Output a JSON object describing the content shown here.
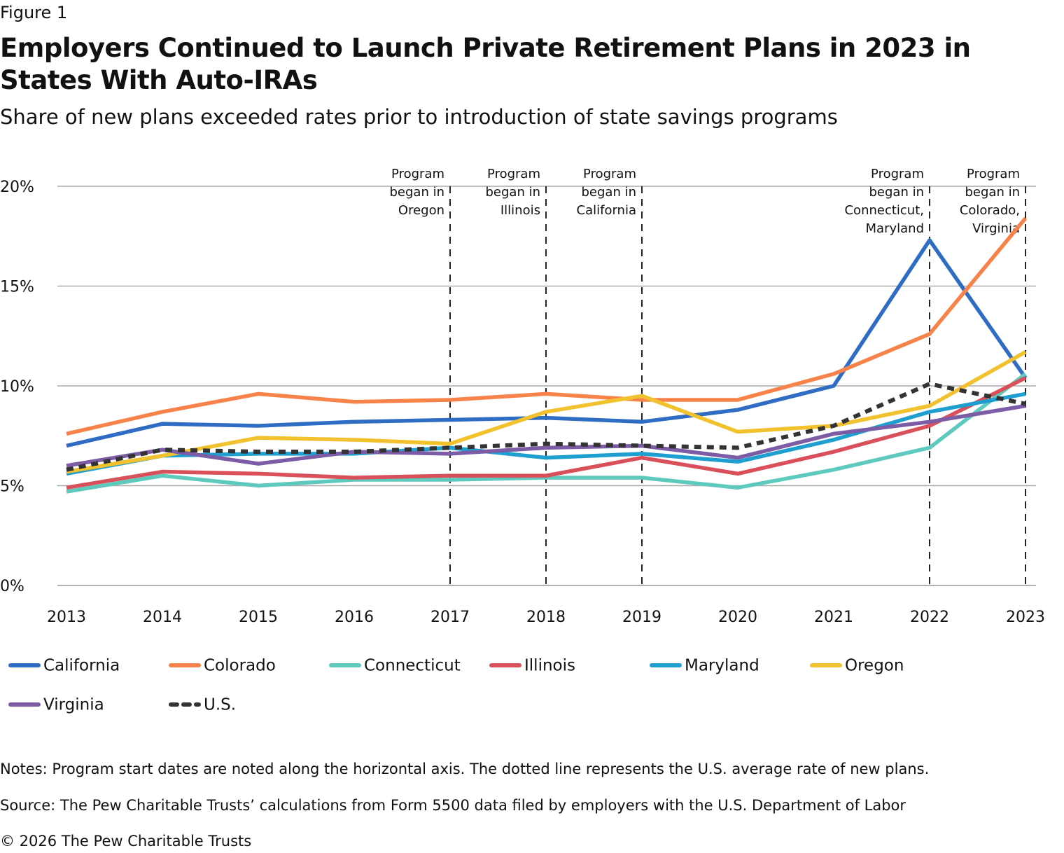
{
  "chart_data": {
    "type": "line",
    "figure_label": "Figure 1",
    "title": "Employers Continued to Launch Private Retirement Plans in 2023 in States With Auto-IRAs",
    "subtitle": "Share of new plans exceeded rates prior to introduction of state savings programs",
    "categories": [
      "2013",
      "2014",
      "2015",
      "2016",
      "2017",
      "2018",
      "2019",
      "2020",
      "2021",
      "2022",
      "2023"
    ],
    "series": [
      {
        "name": "California",
        "color": "#2f6cc4",
        "values": [
          7.0,
          8.1,
          8.0,
          8.2,
          8.3,
          8.4,
          8.2,
          8.8,
          10.0,
          17.3,
          10.4
        ]
      },
      {
        "name": "Colorado",
        "color": "#f7834b",
        "values": [
          7.6,
          8.7,
          9.6,
          9.2,
          9.3,
          9.6,
          9.3,
          9.3,
          10.6,
          12.6,
          18.4
        ]
      },
      {
        "name": "Connecticut",
        "color": "#5ec9bd",
        "values": [
          4.7,
          5.5,
          5.0,
          5.3,
          5.3,
          5.4,
          5.4,
          4.9,
          5.8,
          6.9,
          10.6
        ]
      },
      {
        "name": "Illinois",
        "color": "#d9505a",
        "values": [
          4.9,
          5.7,
          5.6,
          5.4,
          5.5,
          5.5,
          6.4,
          5.6,
          6.7,
          8.0,
          10.4
        ]
      },
      {
        "name": "Maryland",
        "color": "#1f9fcf",
        "values": [
          5.6,
          6.5,
          6.6,
          6.6,
          6.9,
          6.4,
          6.6,
          6.2,
          7.3,
          8.7,
          9.6
        ]
      },
      {
        "name": "Oregon",
        "color": "#f2c22e",
        "values": [
          5.7,
          6.5,
          7.4,
          7.3,
          7.1,
          8.7,
          9.5,
          7.7,
          8.0,
          9.0,
          11.7
        ]
      },
      {
        "name": "Virginia",
        "color": "#7d5ca6",
        "values": [
          6.0,
          6.8,
          6.1,
          6.7,
          6.6,
          6.9,
          7.0,
          6.4,
          7.6,
          8.2,
          9.0
        ]
      },
      {
        "name": "U.S.",
        "color": "#333333",
        "dashed": true,
        "values": [
          5.8,
          6.8,
          6.7,
          6.7,
          6.9,
          7.1,
          7.0,
          6.9,
          8.0,
          10.1,
          9.1
        ]
      }
    ],
    "ylim": [
      0,
      20
    ],
    "yticks": [
      {
        "value": 0,
        "label": "0%"
      },
      {
        "value": 5,
        "label": "5%"
      },
      {
        "value": 10,
        "label": "10%"
      },
      {
        "value": 15,
        "label": "15%"
      },
      {
        "value": 20,
        "label": "20%"
      }
    ],
    "grid": true,
    "annotations": [
      {
        "x": "2017",
        "lines": [
          "Program",
          "began in",
          "Oregon"
        ]
      },
      {
        "x": "2018",
        "lines": [
          "Program",
          "began in",
          "Illinois"
        ]
      },
      {
        "x": "2019",
        "lines": [
          "Program",
          "began in",
          "California"
        ]
      },
      {
        "x": "2022",
        "lines": [
          "Program",
          "began in",
          "Connecticut,",
          "Maryland"
        ]
      },
      {
        "x": "2023",
        "lines": [
          "Program",
          "began in",
          "Colorado,",
          "Virginia"
        ]
      }
    ],
    "notes": "Notes: Program start dates are noted along the horizontal axis. The dotted line represents the U.S. average rate of new plans.",
    "source": "Source: The Pew Charitable Trusts’ calculations from Form 5500 data filed by employers with the U.S. Department of Labor",
    "copyright": "© 2026 The Pew Charitable Trusts"
  }
}
